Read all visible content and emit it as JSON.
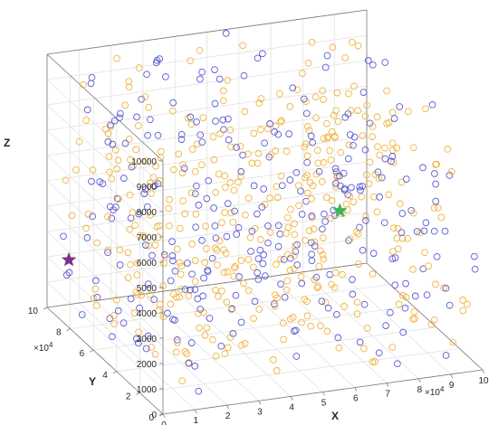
{
  "chart_data": {
    "type": "scatter",
    "projection": "3d",
    "xlabel": "X",
    "ylabel": "Y",
    "zlabel": "Z",
    "xlim": [
      0,
      100000
    ],
    "ylim": [
      0,
      100000
    ],
    "zlim": [
      0,
      10000
    ],
    "x_ticks": [
      "0",
      "1",
      "2",
      "3",
      "4",
      "5",
      "6",
      "7",
      "8",
      "9",
      "10"
    ],
    "y_ticks": [
      "0",
      "2",
      "4",
      "6",
      "8",
      "10"
    ],
    "z_ticks": [
      "0",
      "1000",
      "2000",
      "3000",
      "4000",
      "5000",
      "6000",
      "7000",
      "8000",
      "9000",
      "10000"
    ],
    "x_multiplier": "×10",
    "x_multiplier_exp": "4",
    "y_multiplier": "×10",
    "y_multiplier_exp": "4",
    "grid": true,
    "legend": "none",
    "colors": {
      "blue": "#5b5bd6",
      "orange": "#f0b541",
      "purple_star": "#7d2e8f",
      "green_star": "#3cb35a",
      "grid": "#e3e3e3",
      "box": "#7a7a7a"
    },
    "series": [
      {
        "color": "#5b5bd6",
        "marker": "open-circle",
        "count": 280,
        "distribution": "uniform random over full X, Y, Z ranges"
      },
      {
        "color": "#f0b541",
        "marker": "open-circle",
        "count": 400,
        "distribution": "uniform random over full X, Y, Z ranges"
      }
    ],
    "special_points": [
      {
        "marker": "star",
        "color": "#7d2e8f",
        "x": 5000,
        "y": 95000,
        "z": 2000
      },
      {
        "marker": "star",
        "color": "#3cb35a",
        "x": 88000,
        "y": 90000,
        "z": 2700
      }
    ]
  }
}
